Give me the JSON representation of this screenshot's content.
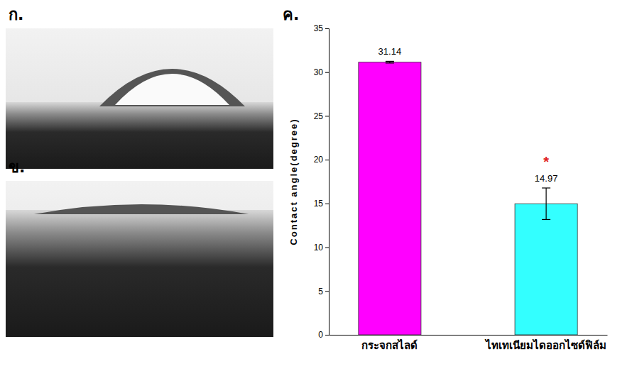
{
  "images": [
    {
      "label": "ก."
    },
    {
      "label": "ข."
    }
  ],
  "chart_data": {
    "type": "bar",
    "panel_label": "ค.",
    "y_label": "Contact angle(degree)",
    "categories": [
      "กระจกสไลด์",
      "ไทเทเนียมไดออกไซด์ฟิล์ม"
    ],
    "values": [
      31.14,
      14.97
    ],
    "errors": [
      0.1,
      1.8
    ],
    "colors": [
      "#ff00ff",
      "#33ffff"
    ],
    "significance": [
      null,
      "*"
    ],
    "ylim": [
      0,
      35
    ],
    "yticks": [
      0,
      5,
      10,
      15,
      20,
      25,
      30,
      35
    ],
    "grid": false,
    "data_labels": true
  }
}
